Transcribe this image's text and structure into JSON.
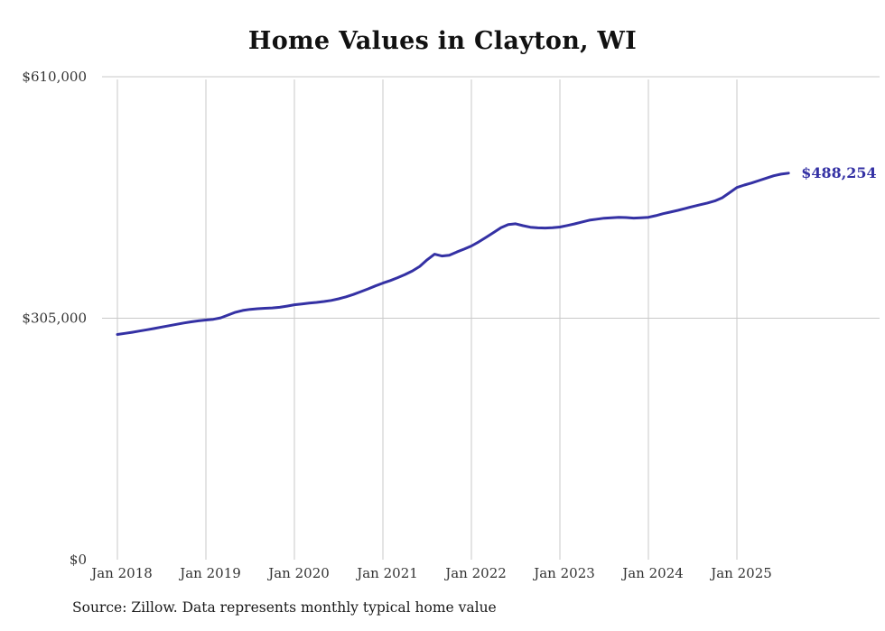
{
  "page": {
    "title": "Home Values in Clayton, WI",
    "source_note": "Source: Zillow. Data represents monthly typical home value"
  },
  "chart_data": {
    "type": "line",
    "title": "Home Values in Clayton, WI",
    "series_name": "Monthly typical home value",
    "xlabel": "",
    "ylabel": "",
    "x_start_month": "2018-01",
    "x_end_month": "2025-08",
    "frequency": "monthly",
    "x_tick_labels": [
      "Jan 2018",
      "Jan 2019",
      "Jan 2020",
      "Jan 2021",
      "Jan 2022",
      "Jan 2023",
      "Jan 2024",
      "Jan 2025"
    ],
    "y_ticks": [
      0,
      305000,
      610000
    ],
    "y_tick_labels": [
      "$0",
      "$305,000",
      "$610,000"
    ],
    "ylim": [
      0,
      610000
    ],
    "grid": true,
    "legend": false,
    "end_label": "$488,254",
    "final_value": 488254,
    "line_color": "#3431a4",
    "grid_color": "#c9c9c9",
    "values": [
      284500,
      285800,
      287200,
      288800,
      290400,
      292000,
      293800,
      295500,
      297200,
      299000,
      300400,
      301700,
      302700,
      303600,
      305500,
      309000,
      312500,
      314800,
      316200,
      317000,
      317500,
      318000,
      318800,
      320300,
      322000,
      323000,
      324000,
      325000,
      326100,
      327500,
      329500,
      332000,
      335000,
      338500,
      342000,
      345800,
      349400,
      352600,
      356200,
      360200,
      364800,
      370500,
      378800,
      385800,
      383600,
      384600,
      388600,
      392200,
      396200,
      401500,
      407200,
      413200,
      419200,
      423300,
      424300,
      421900,
      419900,
      419100,
      418900,
      419300,
      420200,
      422100,
      424200,
      426500,
      428800,
      430100,
      431300,
      431900,
      432400,
      432100,
      431400,
      431900,
      432500,
      434500,
      437000,
      439100,
      441300,
      443600,
      446000,
      448300,
      450500,
      453100,
      457100,
      463500,
      470100,
      473200,
      475800,
      478900,
      481900,
      484900,
      487000,
      488254
    ]
  }
}
